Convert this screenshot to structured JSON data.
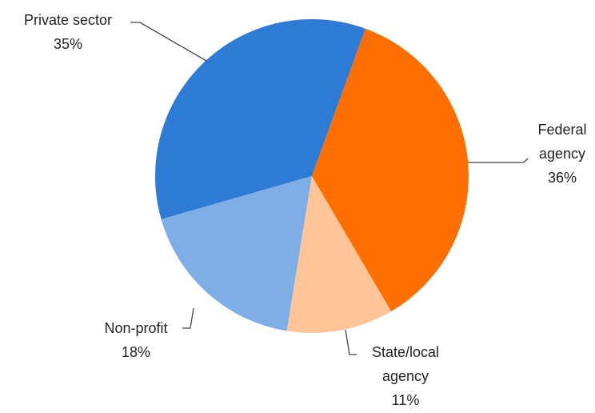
{
  "chart_data": {
    "type": "pie",
    "categories": [
      "Federal agency",
      "State/local agency",
      "Non-profit",
      "Private sector"
    ],
    "values": [
      36,
      11,
      18,
      35
    ],
    "value_labels": [
      "36%",
      "11%",
      "18%",
      "35%"
    ],
    "colors": [
      "#FF6F00",
      "#FFC599",
      "#7FADE6",
      "#2E7BD6"
    ]
  }
}
